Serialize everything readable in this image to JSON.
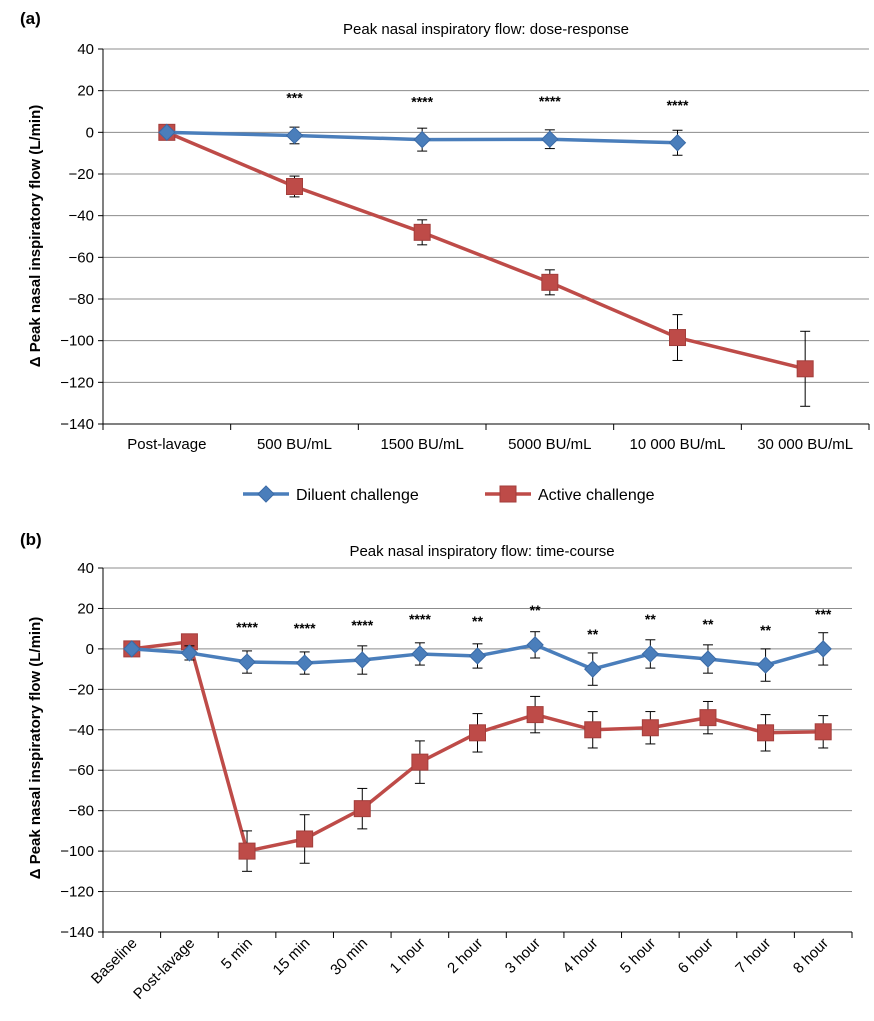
{
  "colors": {
    "diluent": "#4a7ebb",
    "active": "#be4b48",
    "grid": "#8c8c8c",
    "axis": "#000000"
  },
  "legend": {
    "placement": "between-panels",
    "items": [
      {
        "label": "Diluent challenge",
        "marker": "diamond",
        "color": "#4a7ebb"
      },
      {
        "label": "Active challenge",
        "marker": "square",
        "color": "#be4b48"
      }
    ]
  },
  "chart_data": [
    {
      "panel": "(a)",
      "type": "line",
      "title": "Peak nasal inspiratory flow: dose-response",
      "xlabel": "",
      "ylabel": "Δ Peak nasal inspiratory flow (L/min)",
      "ylim": [
        -140,
        40
      ],
      "yticks": [
        "40",
        "20",
        "0",
        "−20",
        "−40",
        "−60",
        "−80",
        "−100",
        "−120",
        "−140"
      ],
      "grid": true,
      "categories": [
        "Post-lavage",
        "500 BU/mL",
        "1500 BU/mL",
        "5000 BU/mL",
        "10 000 BU/mL",
        "30 000 BU/mL"
      ],
      "significance": [
        "",
        "***",
        "****",
        "****",
        "****",
        ""
      ],
      "series": [
        {
          "name": "Diluent challenge",
          "values": [
            0,
            -1.5,
            -3.5,
            -3.3,
            -5,
            null
          ],
          "error": [
            0,
            4,
            5.5,
            4.5,
            6,
            null
          ]
        },
        {
          "name": "Active challenge",
          "values": [
            0,
            -26,
            -48,
            -72,
            -98.5,
            -113.5
          ],
          "error": [
            0,
            5,
            6,
            6,
            11,
            18
          ]
        }
      ]
    },
    {
      "panel": "(b)",
      "type": "line",
      "title": "Peak nasal inspiratory flow: time-course",
      "xlabel": "",
      "ylabel": "Δ Peak nasal inspiratory flow (L/min)",
      "ylim": [
        -140,
        40
      ],
      "yticks": [
        "40",
        "20",
        "0",
        "−20",
        "−40",
        "−60",
        "−80",
        "−100",
        "−120",
        "−140"
      ],
      "grid": true,
      "categories": [
        "Baseline",
        "Post-lavage",
        "5 min",
        "15 min",
        "30 min",
        "1 hour",
        "2 hour",
        "3 hour",
        "4 hour",
        "5 hour",
        "6 hour",
        "7 hour",
        "8 hour"
      ],
      "significance": [
        "",
        "",
        "****",
        "****",
        "****",
        "****",
        "**",
        "**",
        "**",
        "**",
        "**",
        "**",
        "***"
      ],
      "series": [
        {
          "name": "Diluent challenge",
          "values": [
            0,
            -2,
            -6.5,
            -7,
            -5.5,
            -2.5,
            -3.5,
            2,
            -10,
            -2.5,
            -5,
            -8,
            0
          ],
          "error": [
            0,
            3.5,
            5.5,
            5.5,
            7,
            5.5,
            6,
            6.5,
            8,
            7,
            7,
            8,
            8
          ]
        },
        {
          "name": "Active challenge",
          "values": [
            0,
            3.5,
            -100,
            -94,
            -79,
            -56,
            -41.5,
            -32.5,
            -40,
            -39,
            -34,
            -41.5,
            -41
          ],
          "error": [
            0,
            0,
            10,
            12,
            10,
            10.5,
            9.5,
            9,
            9,
            8,
            8,
            9,
            8
          ]
        }
      ]
    }
  ]
}
